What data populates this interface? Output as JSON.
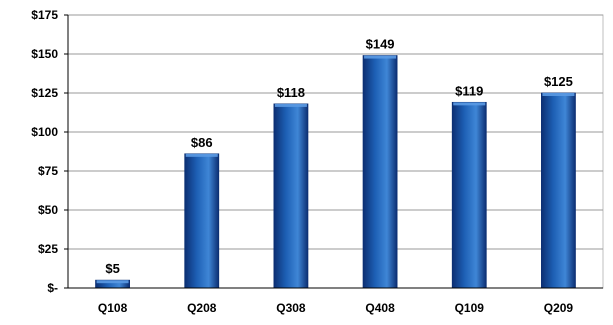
{
  "chart_data": {
    "type": "bar",
    "title": "",
    "xlabel": "",
    "ylabel": "",
    "categories": [
      "Q108",
      "Q208",
      "Q308",
      "Q408",
      "Q109",
      "Q209"
    ],
    "values": [
      5,
      86,
      118,
      149,
      119,
      125
    ],
    "data_labels": [
      "$5",
      "$86",
      "$118",
      "$149",
      "$119",
      "$125"
    ],
    "ylim": [
      0,
      175
    ],
    "yticks": [
      0,
      25,
      50,
      75,
      100,
      125,
      150,
      175
    ],
    "ytick_labels": [
      "$-",
      "$25",
      "$50",
      "$75",
      "$100",
      "$125",
      "$150",
      "$175"
    ],
    "grid": true,
    "legend": "none",
    "colors": {
      "bar_dark": "#0c2f73",
      "bar_main": "#1d5fb4",
      "bar_light": "#3f86d6",
      "bar_top": "#5b9ae3",
      "grid": "#999999",
      "plot_border": "#bfbfbf",
      "axis": "#000000"
    }
  }
}
